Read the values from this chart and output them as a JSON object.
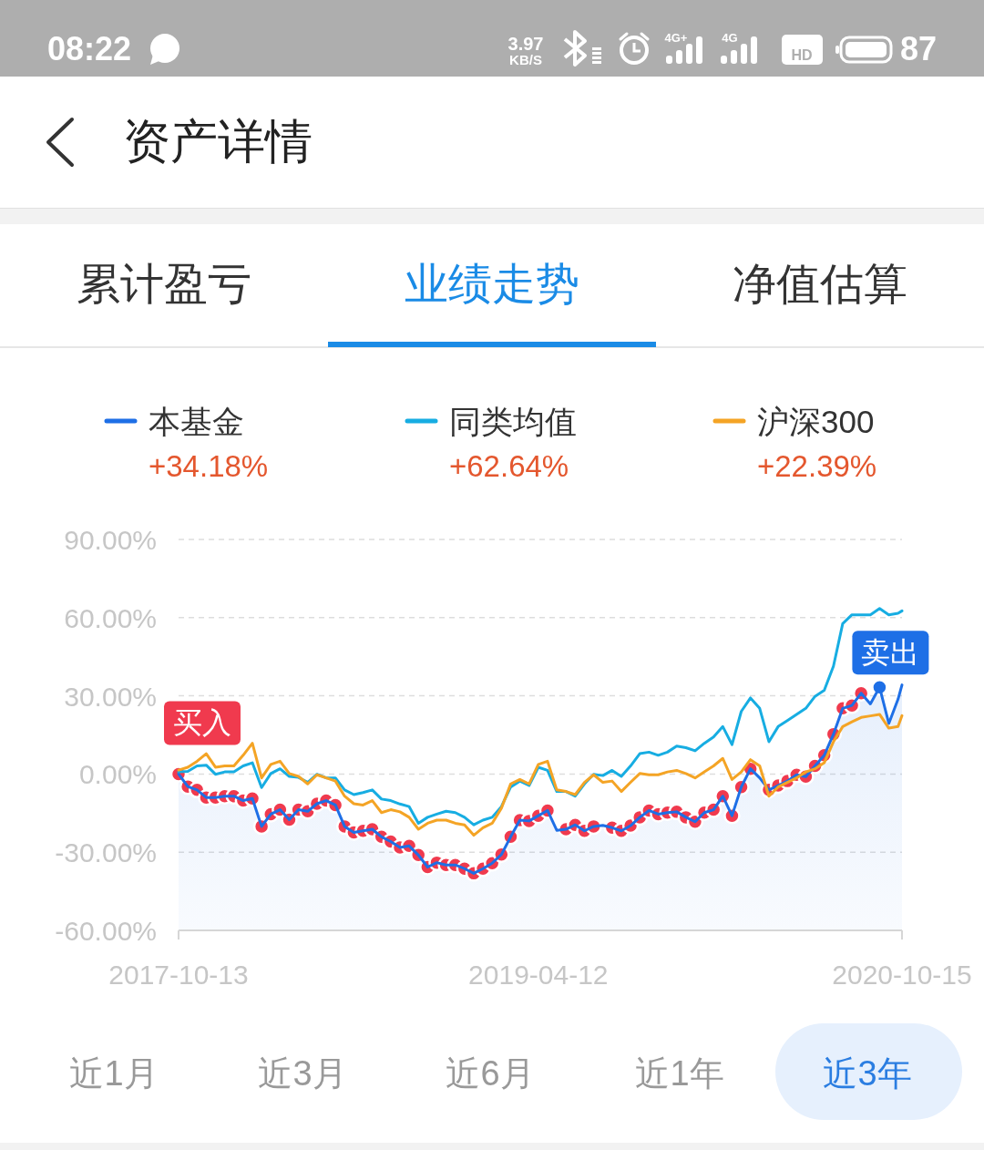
{
  "chart_data": {
    "type": "line",
    "title": "资产详情",
    "x": [
      "2017-10-13",
      "2017-10-27",
      "2017-11-10",
      "2017-11-24",
      "2017-12-08",
      "2017-12-22",
      "2018-01-05",
      "2018-01-19",
      "2018-02-02",
      "2018-02-16",
      "2018-03-02",
      "2018-03-16",
      "2018-03-30",
      "2018-04-13",
      "2018-04-27",
      "2018-05-11",
      "2018-05-25",
      "2018-06-08",
      "2018-06-22",
      "2018-07-06",
      "2018-07-20",
      "2018-08-03",
      "2018-08-17",
      "2018-08-31",
      "2018-09-14",
      "2018-09-28",
      "2018-10-12",
      "2018-10-26",
      "2018-11-09",
      "2018-11-23",
      "2018-12-07",
      "2018-12-21",
      "2019-01-04",
      "2019-01-18",
      "2019-02-01",
      "2019-02-15",
      "2019-03-01",
      "2019-03-15",
      "2019-03-29",
      "2019-04-12",
      "2019-04-26",
      "2019-05-10",
      "2019-05-24",
      "2019-06-07",
      "2019-06-21",
      "2019-07-05",
      "2019-07-19",
      "2019-08-02",
      "2019-08-16",
      "2019-08-30",
      "2019-09-13",
      "2019-09-27",
      "2019-10-11",
      "2019-10-25",
      "2019-11-08",
      "2019-11-22",
      "2019-12-06",
      "2019-12-20",
      "2020-01-03",
      "2020-01-17",
      "2020-01-31",
      "2020-02-14",
      "2020-02-28",
      "2020-03-13",
      "2020-03-27",
      "2020-04-10",
      "2020-04-24",
      "2020-05-08",
      "2020-05-22",
      "2020-06-05",
      "2020-06-19",
      "2020-07-03",
      "2020-07-17",
      "2020-07-31",
      "2020-08-14",
      "2020-08-28",
      "2020-09-11",
      "2020-09-25",
      "2020-10-09",
      "2020-10-15"
    ],
    "series": [
      {
        "name": "本基金",
        "color": "#1e6fe6",
        "values": [
          0,
          -4.8,
          -6.1,
          -9.0,
          -9.0,
          -8.5,
          -8.5,
          -10.2,
          -9.4,
          -20.1,
          -15.4,
          -13.7,
          -17.5,
          -13.7,
          -14.3,
          -11.4,
          -10.2,
          -11.9,
          -20.1,
          -22.4,
          -21.8,
          -21.2,
          -24.1,
          -25.9,
          -28.2,
          -27.6,
          -31.1,
          -35.7,
          -34.0,
          -34.9,
          -34.9,
          -36.3,
          -38.1,
          -36.3,
          -34.2,
          -30.9,
          -24.1,
          -17.7,
          -18.0,
          -16.0,
          -14.0,
          -21.6,
          -21.2,
          -19.5,
          -21.8,
          -20.1,
          -19.7,
          -20.6,
          -21.8,
          -19.8,
          -16.6,
          -14.0,
          -15.4,
          -14.8,
          -14.5,
          -16.6,
          -18.3,
          -14.8,
          -13.7,
          -8.5,
          -16.0,
          -5.0,
          2.0,
          -1.5,
          -6.1,
          -4.4,
          -2.7,
          -0.3,
          -1.0,
          3.1,
          7.2,
          15.3,
          25.2,
          26.3,
          31.0,
          26.9,
          33.3,
          19.4,
          28.7,
          34.2
        ],
        "lower": [
          -60,
          -60,
          -60,
          -60,
          -60,
          -60,
          -60,
          -60,
          -60,
          -60,
          -60,
          -60,
          -60,
          -60,
          -60,
          -60,
          -60,
          -60,
          -60,
          -60,
          -60,
          -60,
          -60,
          -60,
          -60,
          -60,
          -60,
          -60,
          -60,
          -60,
          -60,
          -60,
          -60,
          -60,
          -60,
          -60,
          -60,
          -60,
          -60,
          -60,
          -60,
          -60,
          -60,
          -60,
          -60,
          -60,
          -60,
          -60,
          -60,
          -60,
          -60,
          -60,
          -60,
          -60,
          -60,
          -60,
          -60,
          -60,
          -60,
          -60,
          -60,
          -60,
          -60,
          -60,
          -60,
          -60,
          -60,
          -60,
          -60,
          -60,
          -60,
          -60,
          -60,
          -60,
          -60,
          -60,
          -60,
          -60,
          -60,
          -60
        ],
        "upper": [
          0,
          -4.8,
          -6.1,
          -9.0,
          -9.0,
          -8.5,
          -8.5,
          -10.2,
          -9.4,
          -20.1,
          -15.4,
          -13.7,
          -17.5,
          -13.7,
          -14.3,
          -11.4,
          -10.2,
          -11.9,
          -20.1,
          -22.4,
          -21.8,
          -21.2,
          -24.1,
          -25.9,
          -28.2,
          -27.6,
          -31.1,
          -35.7,
          -34.0,
          -34.9,
          -34.9,
          -36.3,
          -38.1,
          -36.3,
          -34.2,
          -30.9,
          -24.1,
          -17.7,
          -18.0,
          -16.0,
          -14.0,
          -21.6,
          -21.2,
          -19.5,
          -21.8,
          -20.1,
          -19.7,
          -20.6,
          -21.8,
          -19.8,
          -16.6,
          -14.0,
          -15.4,
          -14.8,
          -14.5,
          -16.6,
          -18.3,
          -14.8,
          -13.7,
          -8.5,
          -16.0,
          -5.0,
          2.0,
          -1.5,
          -6.1,
          -4.4,
          -2.7,
          -0.3,
          -1.0,
          3.1,
          7.2,
          15.3,
          25.2,
          26.3,
          31.0,
          26.9,
          33.3,
          19.4,
          28.7,
          34.2
        ]
      },
      {
        "name": "同类均值",
        "color": "#17ade2",
        "values": [
          0.8,
          1.0,
          3.1,
          3.4,
          -0.1,
          0.8,
          0.8,
          3.1,
          4.3,
          -5.2,
          0.2,
          2.0,
          -0.9,
          -1.3,
          -3.2,
          -0.1,
          -1.5,
          -1.5,
          -6.1,
          -7.9,
          -7.1,
          -6.1,
          -9.6,
          -10.2,
          -11.5,
          -12.5,
          -18.9,
          -16.6,
          -15.4,
          -14.3,
          -14.8,
          -16.6,
          -19.5,
          -17.7,
          -16.6,
          -12.5,
          -5.0,
          -2.7,
          -4.4,
          2.6,
          1.4,
          -6.7,
          -6.7,
          -8.5,
          -3.8,
          -0.1,
          -0.6,
          1.4,
          -0.9,
          3.1,
          7.8,
          8.4,
          7.2,
          8.4,
          10.7,
          10.1,
          8.9,
          11.8,
          14.2,
          18.2,
          11.3,
          24.0,
          29.2,
          25.2,
          12.4,
          18.2,
          20.5,
          22.9,
          25.2,
          29.8,
          32.1,
          41.4,
          57.7,
          61.1,
          61.1,
          61.1,
          63.5,
          61.1,
          61.7,
          62.6
        ]
      },
      {
        "name": "沪深300",
        "color": "#f4a425",
        "values": [
          1.5,
          2.6,
          4.9,
          7.8,
          2.6,
          3.1,
          3.1,
          7.2,
          11.8,
          -1.5,
          3.7,
          4.9,
          0.2,
          -0.9,
          -3.8,
          -0.3,
          -1.5,
          -2.7,
          -8.5,
          -11.4,
          -11.9,
          -10.2,
          -14.8,
          -13.7,
          -14.5,
          -16.6,
          -21.2,
          -18.9,
          -17.7,
          -17.7,
          -18.9,
          -19.5,
          -23.5,
          -20.6,
          -18.9,
          -13.1,
          -3.8,
          -2.1,
          -3.8,
          3.7,
          4.9,
          -6.1,
          -6.7,
          -7.9,
          -3.2,
          -0.3,
          -3.2,
          -2.7,
          -6.7,
          -3.2,
          0.2,
          -0.3,
          -0.3,
          0.8,
          1.4,
          0.2,
          -1.5,
          0.8,
          3.1,
          6.0,
          -2.1,
          0.8,
          5.5,
          3.1,
          -8.5,
          -5.0,
          -3.2,
          -1.5,
          0.8,
          2.0,
          4.3,
          12.4,
          18.2,
          20.0,
          21.7,
          22.3,
          22.9,
          17.6,
          18.2,
          22.4
        ]
      },
      {
        "name": "买入",
        "type": "scatter",
        "marker": "circle",
        "color": "#f03a4e",
        "x": [
          "2017-10-13",
          "2017-10-27",
          "2017-11-10",
          "2017-11-24",
          "2017-12-08",
          "2017-12-22",
          "2018-01-05",
          "2018-01-19",
          "2018-02-02",
          "2018-02-16",
          "2018-03-02",
          "2018-03-16",
          "2018-03-30",
          "2018-04-13",
          "2018-04-27",
          "2018-05-11",
          "2018-05-25",
          "2018-06-08",
          "2018-06-22",
          "2018-07-06",
          "2018-07-20",
          "2018-08-03",
          "2018-08-17",
          "2018-08-31",
          "2018-09-14",
          "2018-09-28",
          "2018-10-12",
          "2018-10-26",
          "2018-11-09",
          "2018-11-23",
          "2018-12-07",
          "2018-12-21",
          "2019-01-04",
          "2019-01-18",
          "2019-02-01",
          "2019-02-15",
          "2019-03-01",
          "2019-03-15",
          "2019-03-29",
          "2019-04-12",
          "2019-04-26",
          "2019-05-24",
          "2019-06-07",
          "2019-06-21",
          "2019-07-05",
          "2019-08-02",
          "2019-08-16",
          "2019-08-30",
          "2019-09-13",
          "2019-09-27",
          "2019-10-11",
          "2019-10-25",
          "2019-11-08",
          "2019-11-22",
          "2019-12-06",
          "2019-12-20",
          "2020-01-03",
          "2020-01-17",
          "2020-01-31",
          "2020-02-14",
          "2020-02-28",
          "2020-03-27",
          "2020-04-10",
          "2020-04-24",
          "2020-05-08",
          "2020-05-22",
          "2020-06-05",
          "2020-06-19",
          "2020-07-03",
          "2020-07-17",
          "2020-07-31",
          "2020-08-14"
        ],
        "values": [
          0,
          -4.8,
          -6.1,
          -9.0,
          -9.0,
          -8.5,
          -8.5,
          -10.2,
          -9.4,
          -20.1,
          -15.4,
          -13.7,
          -17.5,
          -13.7,
          -14.3,
          -11.4,
          -10.2,
          -11.9,
          -20.1,
          -22.4,
          -21.8,
          -21.2,
          -24.1,
          -25.9,
          -28.2,
          -27.6,
          -31.1,
          -35.7,
          -34.0,
          -34.9,
          -34.9,
          -36.3,
          -38.1,
          -36.3,
          -34.2,
          -30.9,
          -24.1,
          -17.7,
          -18.0,
          -16.0,
          -14.0,
          -21.2,
          -19.5,
          -21.8,
          -20.1,
          -20.6,
          -21.8,
          -19.8,
          -16.6,
          -14.0,
          -15.4,
          -14.8,
          -14.5,
          -16.6,
          -18.3,
          -14.8,
          -13.7,
          -8.5,
          -16.0,
          -5.0,
          2.0,
          -6.1,
          -4.4,
          -2.7,
          -0.3,
          -1.0,
          3.1,
          7.2,
          15.3,
          25.2,
          26.3,
          31.0
        ]
      },
      {
        "name": "卖出",
        "type": "scatter",
        "marker": "circle",
        "color": "#1e6fe6",
        "x": [
          "2020-09-11"
        ],
        "values": [
          33.3
        ]
      }
    ],
    "xlim": [
      "2017-10-13",
      "2020-10-15"
    ],
    "xticks": [
      "2017-10-13",
      "2019-04-12",
      "2020-10-15"
    ],
    "ylim": [
      -60,
      90
    ],
    "yticks": [
      {
        "value": -60,
        "label": "-60.00%"
      },
      {
        "value": -30,
        "label": "-30.00%"
      },
      {
        "value": 0,
        "label": "0.00%"
      },
      {
        "value": 30,
        "label": "30.00%"
      },
      {
        "value": 60,
        "label": "60.00%"
      },
      {
        "value": 90,
        "label": "90.00%"
      }
    ],
    "grid": "y",
    "legend": "top",
    "annotations": [
      "08:22",
      "3.97",
      "KB/S",
      "4G+",
      "4G",
      "HD",
      "87",
      "累计盈亏",
      "业绩走势",
      "净值估算",
      "+34.18%",
      "+62.64%",
      "+22.39%",
      "近1月",
      "近3月",
      "近6月",
      "近1年",
      "近3年"
    ]
  }
}
